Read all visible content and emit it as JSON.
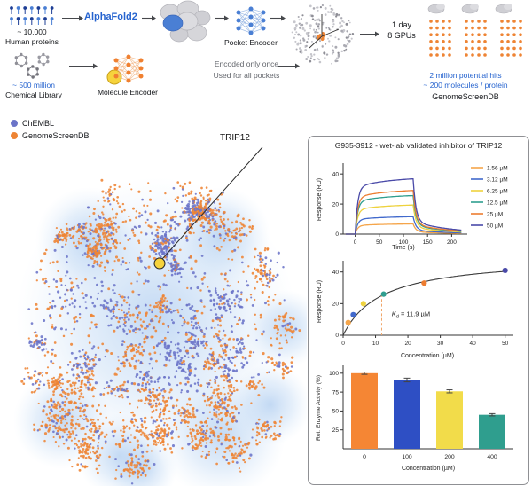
{
  "workflow": {
    "human_count": "~ 10,000",
    "human_label": "Human proteins",
    "alphafold": "AlphaFold2",
    "pocket_encoder": "Pocket Encoder",
    "chem_count": "~ 500 million",
    "chem_label": "Chemical Library",
    "molecule_encoder": "Molecule Encoder",
    "note1": "Encoded only once",
    "note2": "Used for all pockets",
    "time1": "1 day",
    "time2": "8 GPUs",
    "hits1": "2 million potential hits",
    "hits2": "~ 200 molecules / protein",
    "db": "GenomeScreenDB",
    "accent_blue": "#2563cf",
    "accent_orange": "#ee8434"
  },
  "legend": {
    "items": [
      {
        "label": "ChEMBL",
        "color": "#6b74c8"
      },
      {
        "label": "GenomeScreenDB",
        "color": "#ee8434"
      }
    ]
  },
  "scatter": {
    "highlight_label": "TRIP12",
    "blue": "#6b74c8",
    "orange": "#ee8434",
    "highlight_color": "#f6d33c"
  },
  "panel": {
    "title": "G935-3912 - wet-lab validated inhibitor of TRIP12"
  },
  "chart_data": [
    {
      "type": "line",
      "title": "SPR sensorgram",
      "xlabel": "Time (s)",
      "ylabel": "Response (RU)",
      "xlim": [
        -25,
        225
      ],
      "ylim": [
        0,
        46
      ],
      "xticks": [
        0,
        50,
        100,
        150,
        200
      ],
      "yticks": [
        0,
        20,
        40
      ],
      "association_end": 120,
      "series": [
        {
          "name": "1.56 µM",
          "plateau": 7,
          "color": "#f5a54a"
        },
        {
          "name": "3.12 µM",
          "plateau": 12,
          "color": "#4169cc"
        },
        {
          "name": "6.25 µM",
          "plateau": 20,
          "color": "#eed23e"
        },
        {
          "name": "12.5 µM",
          "plateau": 26.5,
          "color": "#2f9e8f"
        },
        {
          "name": "25 µM",
          "plateau": 30,
          "color": "#ed7d31"
        },
        {
          "name": "50 µM",
          "plateau": 38,
          "color": "#4a4aa8"
        }
      ]
    },
    {
      "type": "scatter",
      "xlabel": "Concentration (µM)",
      "ylabel": "Response (RU)",
      "xlim": [
        0,
        52
      ],
      "ylim": [
        0,
        46
      ],
      "xticks": [
        0,
        10,
        20,
        30,
        40,
        50
      ],
      "yticks": [
        0,
        20,
        40
      ],
      "points": [
        {
          "x": 1.56,
          "y": 8,
          "color": "#f5a54a"
        },
        {
          "x": 3.12,
          "y": 13,
          "color": "#4169cc"
        },
        {
          "x": 6.25,
          "y": 20,
          "color": "#eed23e"
        },
        {
          "x": 12.5,
          "y": 26,
          "color": "#2f9e8f"
        },
        {
          "x": 25,
          "y": 33,
          "color": "#ed7d31"
        },
        {
          "x": 50,
          "y": 41,
          "color": "#4a4aa8"
        }
      ],
      "fit": {
        "kd": 11.9,
        "rmax": 50
      },
      "kd_k": "K",
      "kd_d": "d",
      "kd_rest": " = 11.9 µM"
    },
    {
      "type": "bar",
      "xlabel": "Concentration (µM)",
      "ylabel": "Rel. Enzyme Activity (%)",
      "categories": [
        "0",
        "100",
        "200",
        "400"
      ],
      "values": [
        100,
        91,
        76,
        45
      ],
      "errors": [
        1.5,
        2.5,
        2,
        1.5
      ],
      "colors": [
        "#f58634",
        "#2e4fc4",
        "#f2dc4a",
        "#2f9e8e"
      ],
      "yticks": [
        25,
        50,
        75,
        100
      ],
      "ylim": [
        0,
        108
      ]
    }
  ]
}
